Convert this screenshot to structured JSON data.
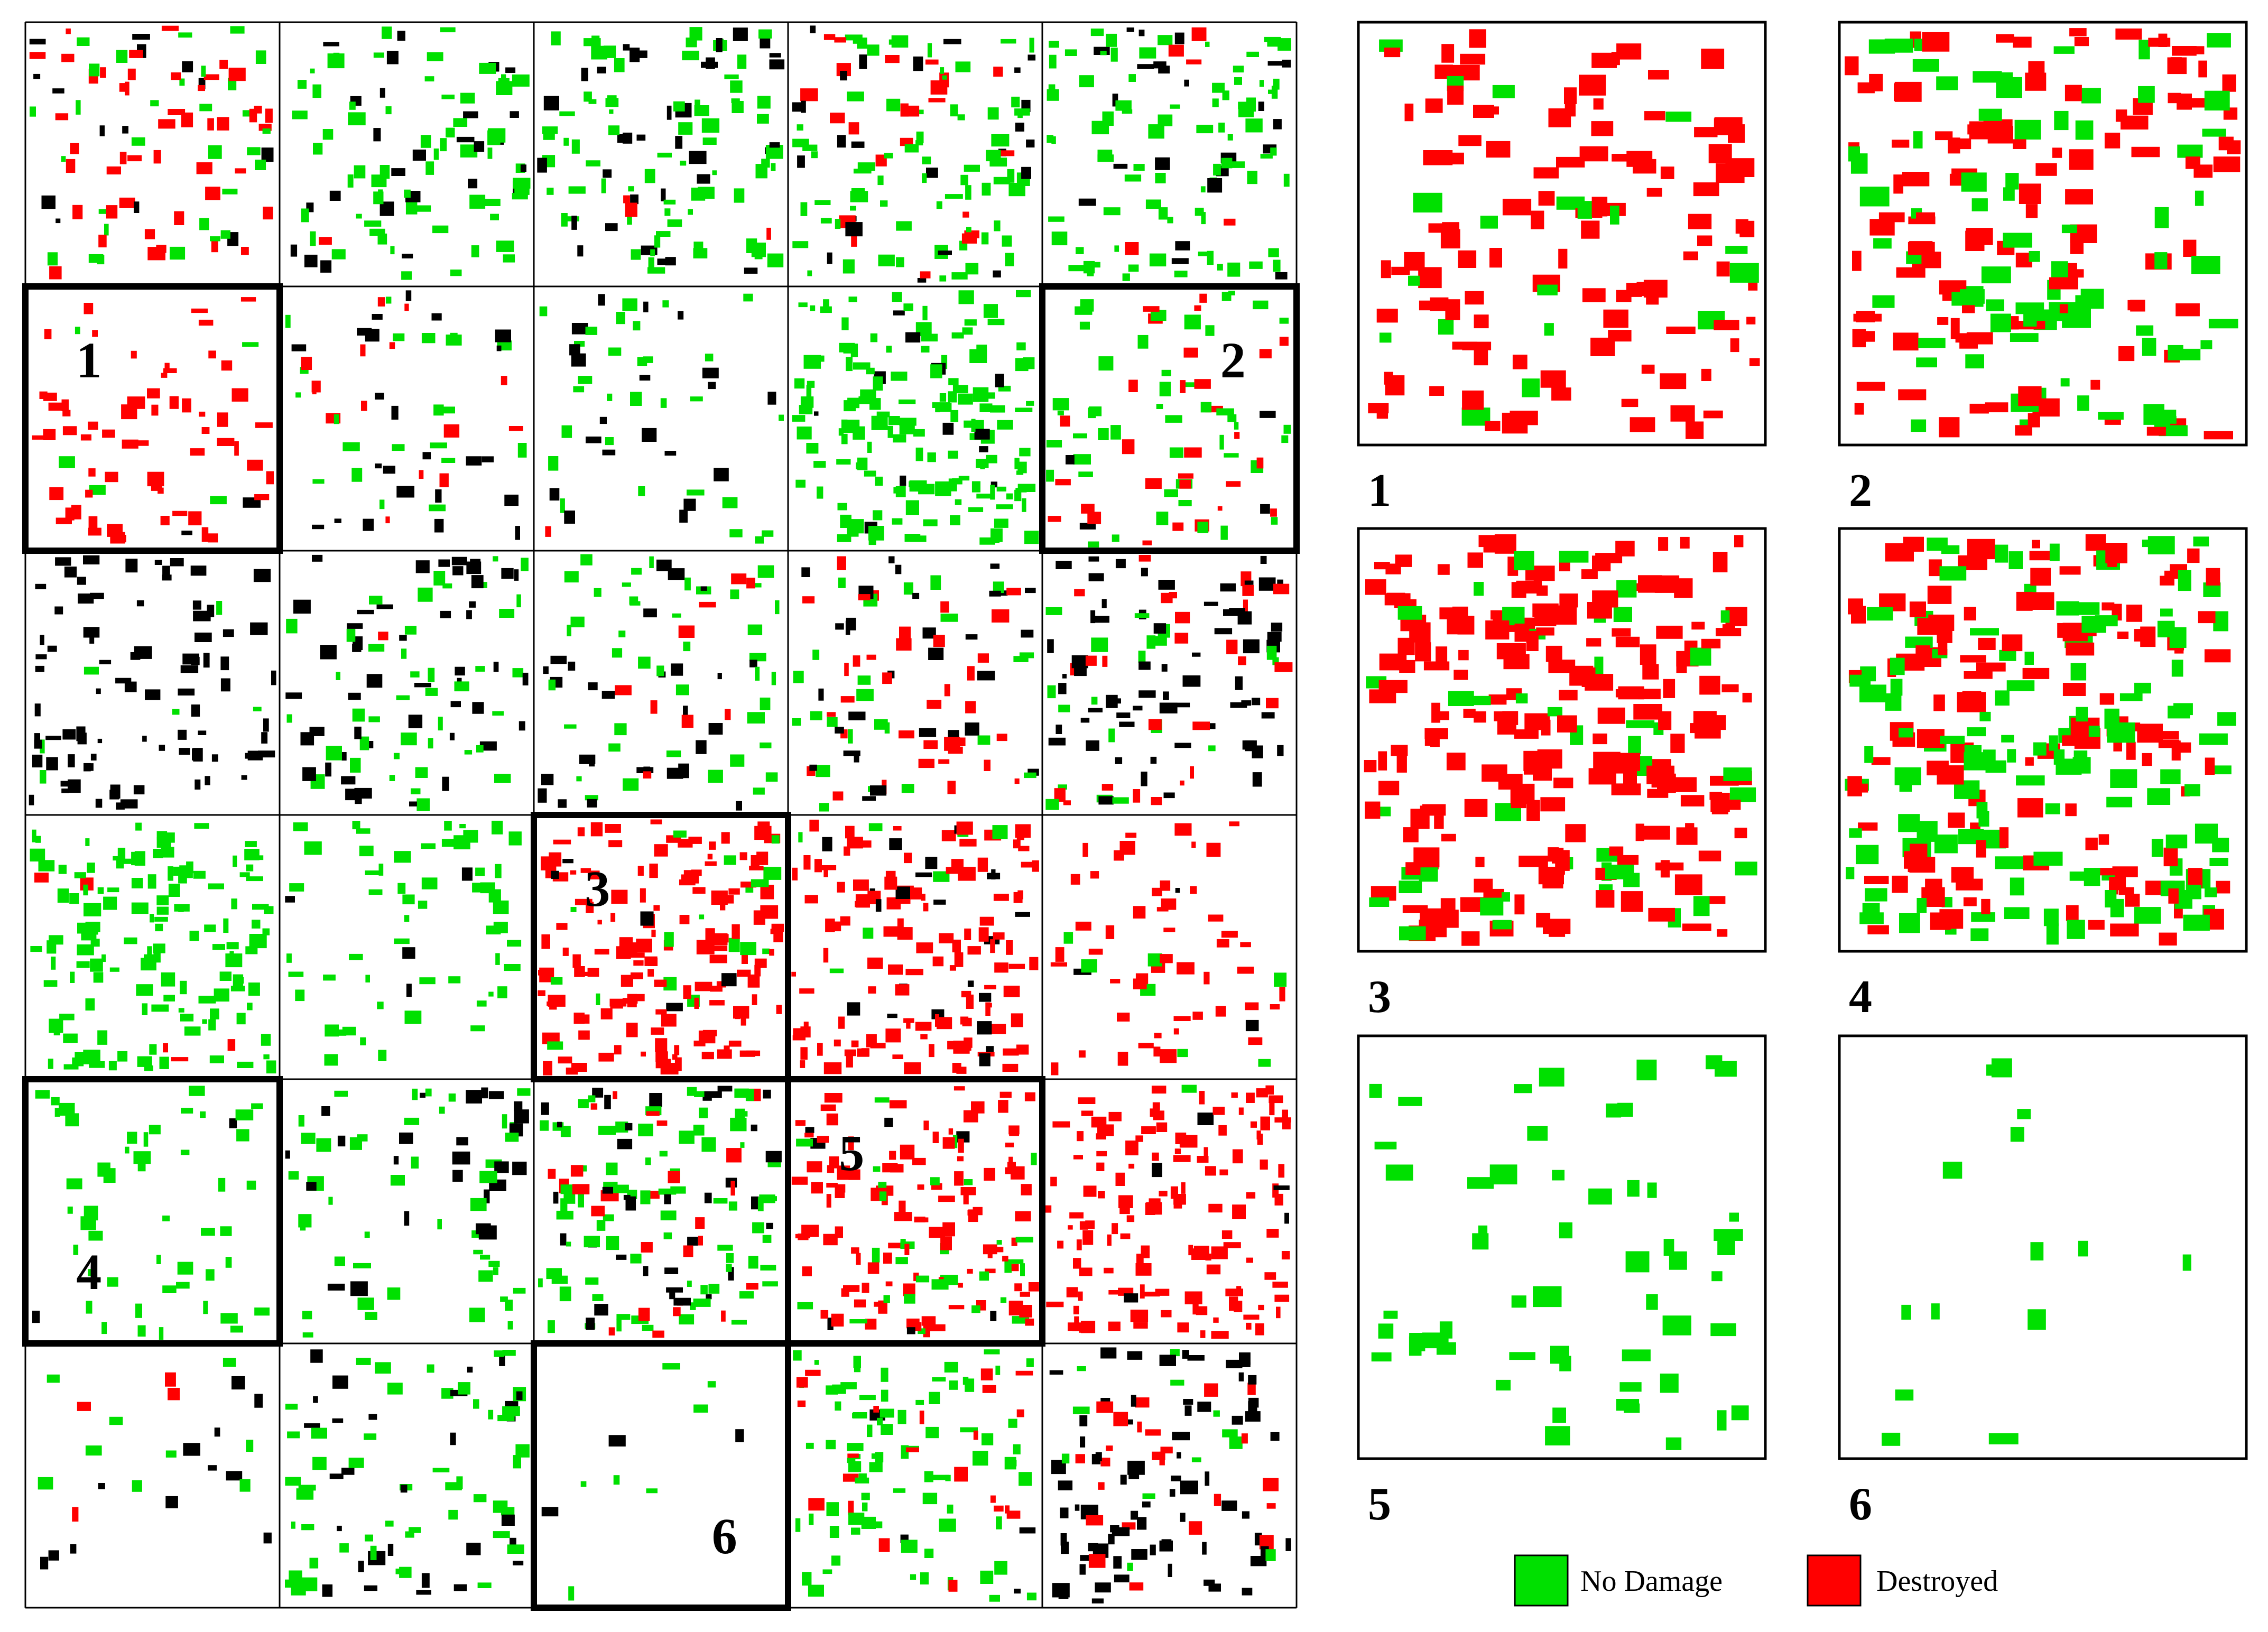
{
  "overview_map": {
    "grid_rows": 6,
    "grid_cols": 5,
    "highlighted_tiles": [
      {
        "label": "1",
        "row": 1,
        "col": 0
      },
      {
        "label": "2",
        "row": 1,
        "col": 4
      },
      {
        "label": "3",
        "row": 3,
        "col": 2
      },
      {
        "label": "4",
        "row": 4,
        "col": 0
      },
      {
        "label": "5",
        "row": 4,
        "col": 3
      },
      {
        "label": "6",
        "row": 5,
        "col": 2
      }
    ]
  },
  "zoom_panels": [
    {
      "label": "1",
      "dominant": "destroyed"
    },
    {
      "label": "2",
      "dominant": "mixed"
    },
    {
      "label": "3",
      "dominant": "destroyed"
    },
    {
      "label": "4",
      "dominant": "mixed"
    },
    {
      "label": "5",
      "dominant": "no-damage"
    },
    {
      "label": "6",
      "dominant": "no-damage"
    }
  ],
  "legend": {
    "items": [
      {
        "label": "No Damage",
        "color": "#00e000"
      },
      {
        "label": "Destroyed",
        "color": "#ff0000"
      }
    ]
  },
  "colors": {
    "no_damage": "#00e000",
    "destroyed": "#ff0000",
    "unclassified": "#000000",
    "grid_line": "#000000"
  }
}
